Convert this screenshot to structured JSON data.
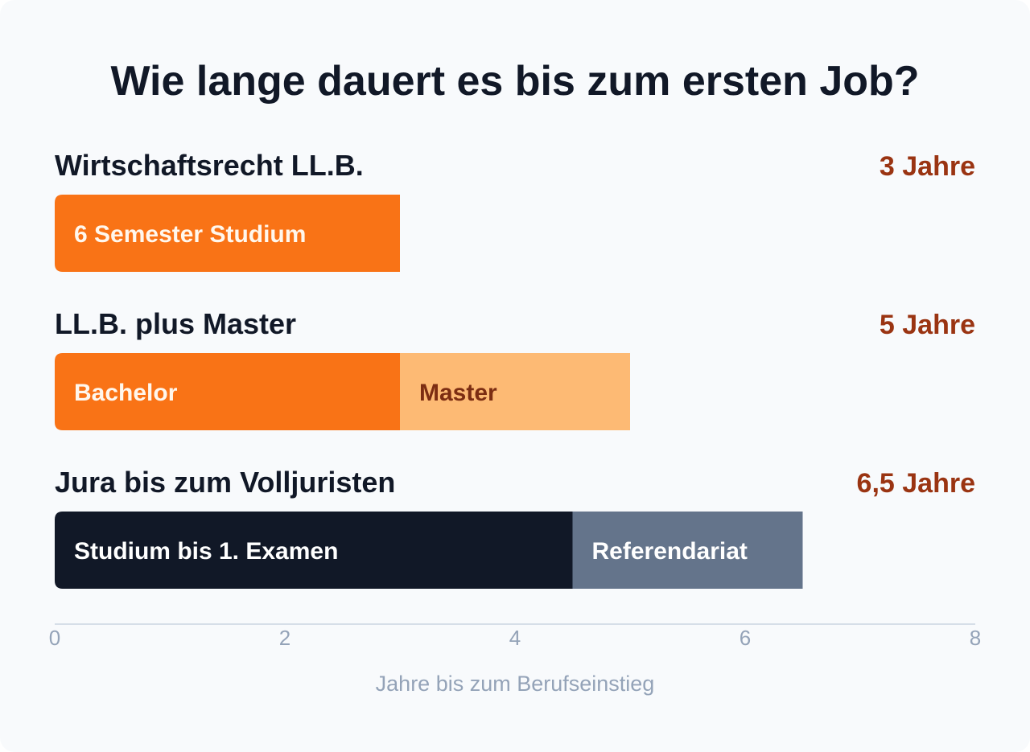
{
  "chart_data": {
    "type": "bar",
    "orientation": "horizontal",
    "stacked": true,
    "title": "Wie lange dauert es bis zum ersten Job?",
    "xlabel": "Jahre bis zum Berufseinstieg",
    "xlim": [
      0,
      8
    ],
    "xticks": [
      "0",
      "2",
      "4",
      "6",
      "8"
    ],
    "rows": [
      {
        "label": "Wirtschaftsrecht LL.B.",
        "total_label": "3 Jahre",
        "segments": [
          {
            "label": "6 Semester Studium",
            "start": 0,
            "value": 3,
            "color": "#f97316",
            "text_color": "#fff7ed"
          }
        ]
      },
      {
        "label": "LL.B. plus Master",
        "total_label": "5 Jahre",
        "segments": [
          {
            "label": "Bachelor",
            "start": 0,
            "value": 3,
            "color": "#f97316",
            "text_color": "#fff7ed"
          },
          {
            "label": "Master",
            "start": 3,
            "value": 2,
            "color": "#fdba74",
            "text_color": "#7c2d12"
          }
        ]
      },
      {
        "label": "Jura bis zum Volljuristen",
        "total_label": "6,5 Jahre",
        "segments": [
          {
            "label": "Studium bis 1. Examen",
            "start": 0,
            "value": 4.5,
            "color": "#111827",
            "text_color": "#ffffff"
          },
          {
            "label": "Referendariat",
            "start": 4.5,
            "value": 2,
            "color": "#64748b",
            "text_color": "#ffffff"
          }
        ]
      }
    ],
    "colors": {
      "title": "#111827",
      "total": "#9a3412",
      "axis": "#94a3b8",
      "axis_line": "#cbd5e1"
    }
  }
}
